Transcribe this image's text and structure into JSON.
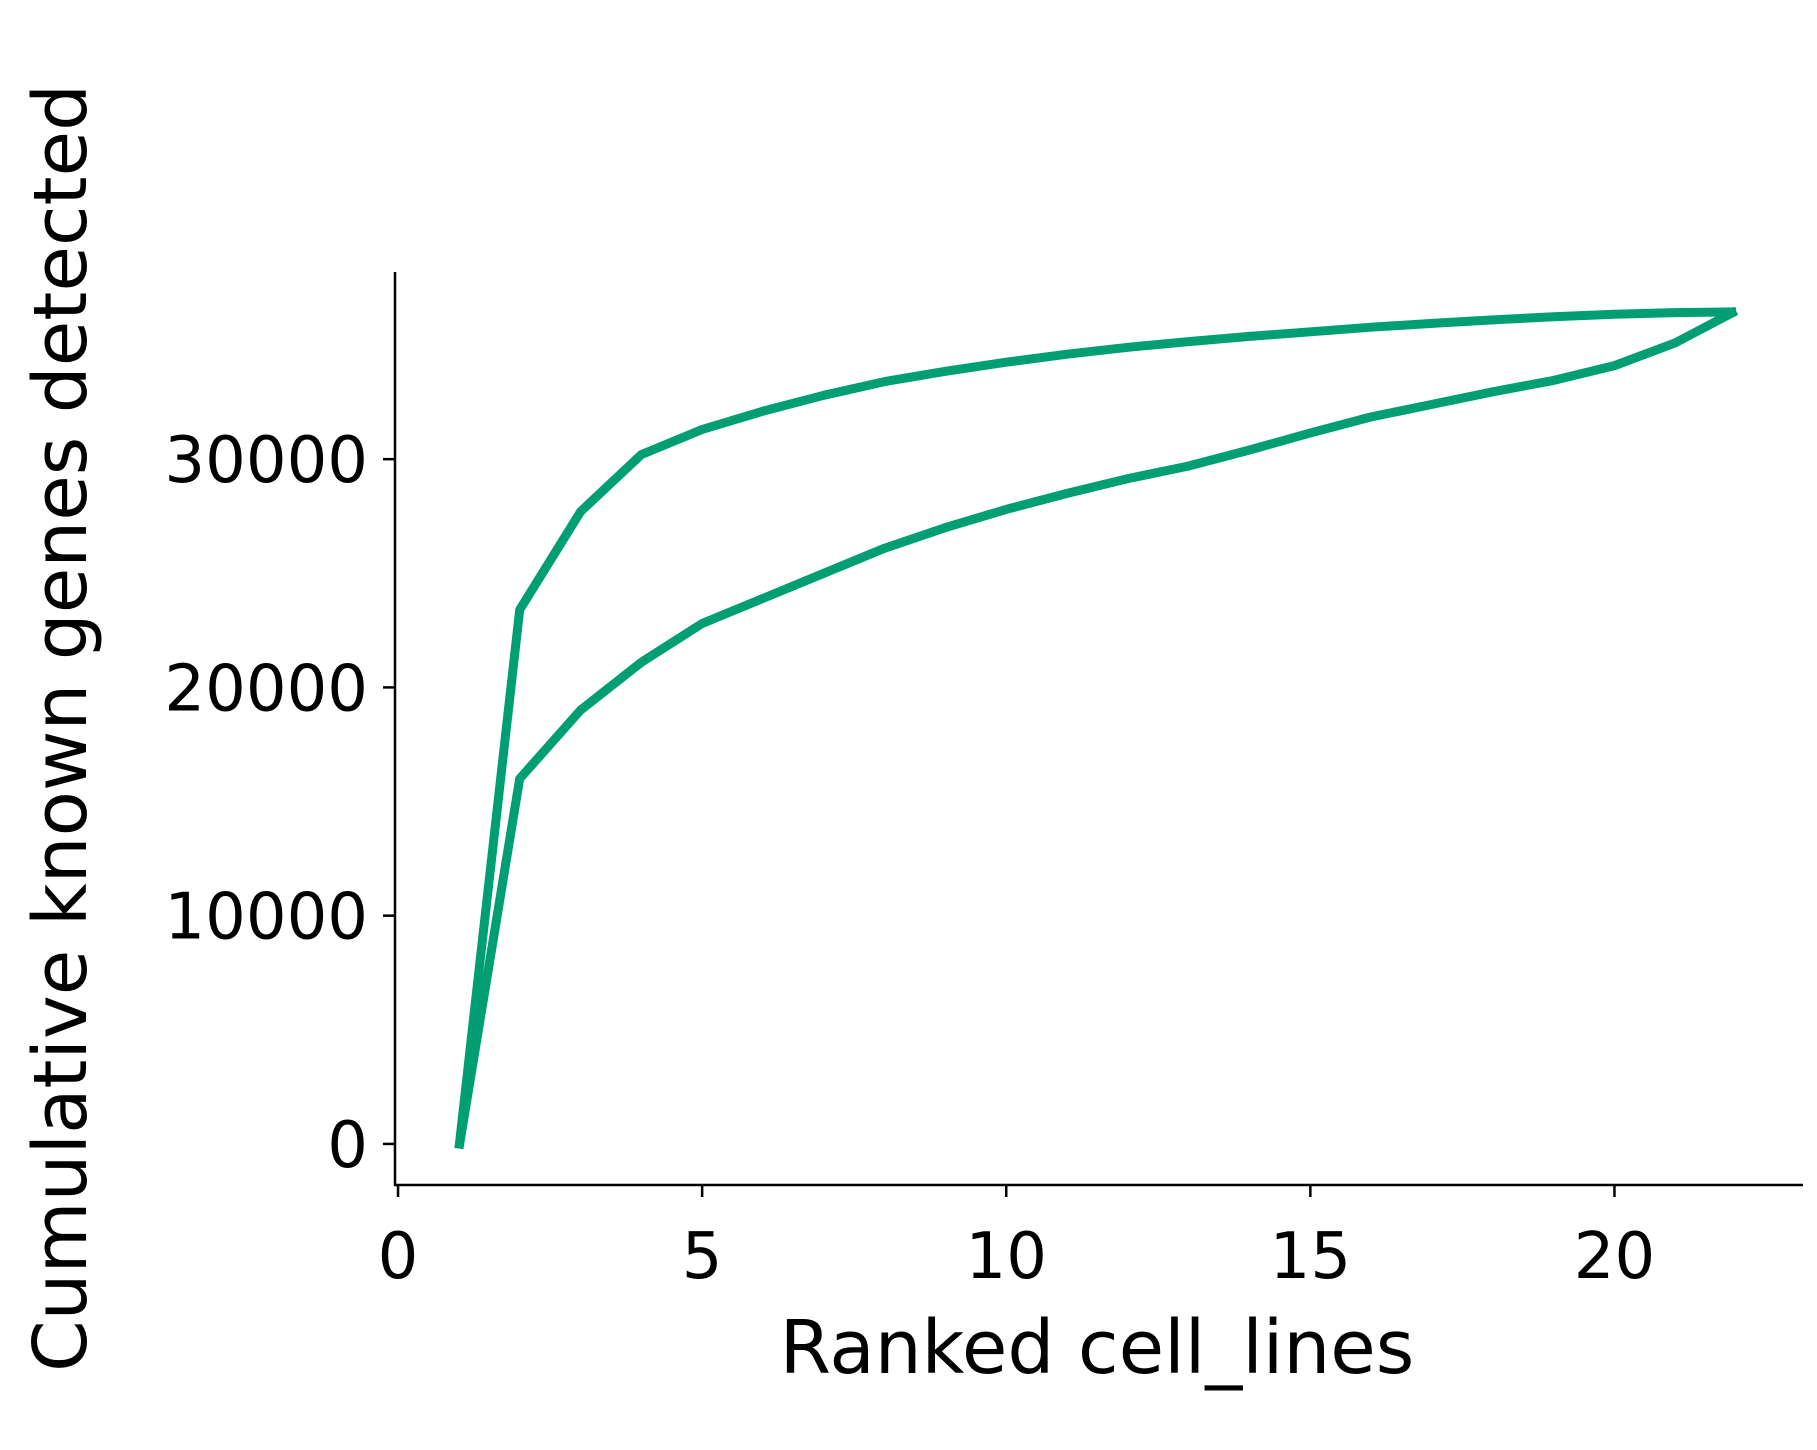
{
  "chart_data": {
    "type": "line",
    "title": "",
    "xlabel": "Ranked cell_lines",
    "ylabel": "Cumulative known genes detected",
    "xlim": [
      -0.05,
      23.1
    ],
    "ylim": [
      -1800,
      38200
    ],
    "xticks": [
      0,
      5,
      10,
      15,
      20
    ],
    "yticks": [
      0,
      10000,
      20000,
      30000
    ],
    "xtick_labels": [
      "0",
      "5",
      "10",
      "15",
      "20"
    ],
    "ytick_labels": [
      "0",
      "10000",
      "20000",
      "30000"
    ],
    "grid": false,
    "legend": "none",
    "color": "#009e73",
    "series": [
      {
        "x": [
          1,
          2,
          3,
          4,
          5,
          6,
          7,
          8,
          9,
          10,
          11,
          12,
          13,
          14,
          15,
          16,
          17,
          18,
          19,
          20,
          21,
          22
        ],
        "values": [
          -200,
          23400,
          27700,
          30200,
          31300,
          32100,
          32800,
          33400,
          33850,
          34250,
          34600,
          34900,
          35150,
          35380,
          35580,
          35780,
          35950,
          36100,
          36240,
          36350,
          36420,
          36450
        ]
      },
      {
        "x": [
          1,
          2,
          3,
          4,
          5,
          6,
          7,
          8,
          9,
          10,
          11,
          12,
          13,
          14,
          15,
          16,
          17,
          18,
          19,
          20,
          21,
          22
        ],
        "values": [
          -200,
          16000,
          19000,
          21100,
          22800,
          23900,
          25000,
          26100,
          27000,
          27800,
          28500,
          29150,
          29700,
          30400,
          31150,
          31850,
          32400,
          32950,
          33450,
          34100,
          35100,
          36500
        ]
      }
    ]
  }
}
